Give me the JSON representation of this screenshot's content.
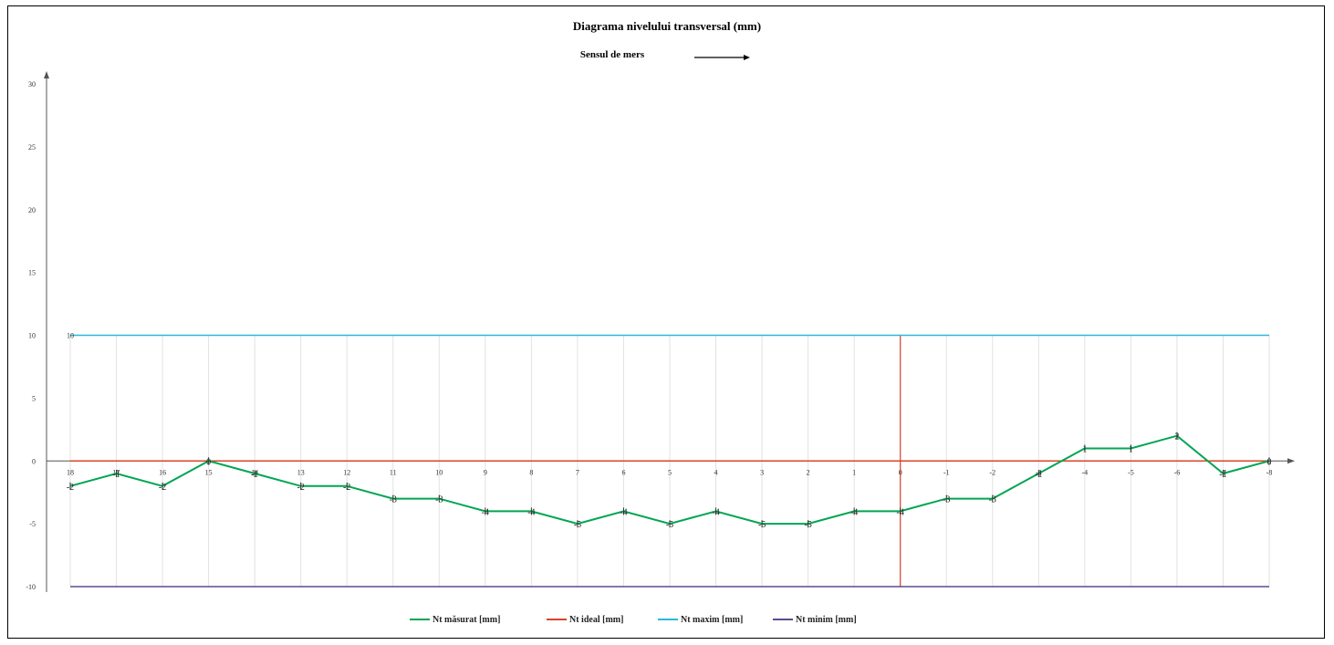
{
  "chart_data": {
    "type": "line",
    "title": "Diagrama nivelului transversal (mm)",
    "subtitle": "Sensul de mers",
    "categories": [
      "18",
      "17",
      "16",
      "15",
      "14",
      "13",
      "12",
      "11",
      "10",
      "9",
      "8",
      "7",
      "6",
      "5",
      "4",
      "3",
      "2",
      "1",
      "0",
      "-1",
      "-2",
      "-3",
      "-4",
      "-5",
      "-6",
      "-7",
      "-8"
    ],
    "ylim": [
      -10,
      30
    ],
    "yticks": [
      30,
      25,
      20,
      15,
      10,
      5,
      0,
      -5,
      -10
    ],
    "grid": "vertical",
    "legend_position": "bottom",
    "series": [
      {
        "name": "Nt măsurat [mm]",
        "color": "#00a651",
        "values": [
          -2,
          -1,
          -2,
          0,
          -1,
          -2,
          -2,
          -3,
          -3,
          -4,
          -4,
          -5,
          -4,
          -5,
          -4,
          -5,
          -5,
          -4,
          -4,
          -3,
          -3,
          -1,
          1,
          1,
          2,
          -1,
          0
        ]
      },
      {
        "name": "Nt ideal [mm]",
        "color": "#d9442a",
        "values": [
          0,
          0,
          0,
          0,
          0,
          0,
          0,
          0,
          0,
          0,
          0,
          0,
          0,
          0,
          0,
          0,
          0,
          0,
          0,
          0,
          0,
          0,
          0,
          0,
          0,
          0,
          0
        ]
      },
      {
        "name": "Nt maxim [mm]",
        "color": "#2eb8d9",
        "values": [
          10,
          10,
          10,
          10,
          10,
          10,
          10,
          10,
          10,
          10,
          10,
          10,
          10,
          10,
          10,
          10,
          10,
          10,
          10,
          10,
          10,
          10,
          10,
          10,
          10,
          10,
          10
        ],
        "first_label": "10"
      },
      {
        "name": "Nt minim [mm]",
        "color": "#5e4a8e",
        "values": [
          -10,
          -10,
          -10,
          -10,
          -10,
          -10,
          -10,
          -10,
          -10,
          -10,
          -10,
          -10,
          -10,
          -10,
          -10,
          -10,
          -10,
          -10,
          -10,
          -10,
          -10,
          -10,
          -10,
          -10,
          -10,
          -10,
          -10
        ]
      }
    ],
    "marker_category": "0",
    "marker_color": "#d9442a"
  }
}
